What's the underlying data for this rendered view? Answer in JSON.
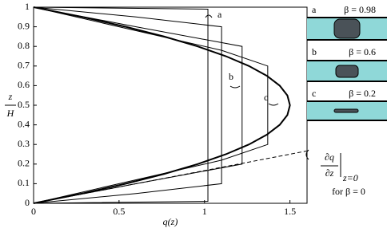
{
  "chart_data": {
    "type": "line",
    "xlabel": "q(z)",
    "ylabel_top": "z",
    "ylabel_bottom": "H",
    "xlim": [
      0,
      1.6
    ],
    "ylim": [
      0,
      1
    ],
    "xticks": [
      0,
      0.5,
      1,
      1.5
    ],
    "yticks": [
      0,
      0.1,
      0.2,
      0.3,
      0.4,
      0.5,
      0.6,
      0.7,
      0.8,
      0.9,
      1
    ],
    "series": [
      {
        "color": "#000000",
        "width": 2,
        "x": [
          0,
          0.285,
          0.54,
          0.765,
          0.96,
          1.125,
          1.26,
          1.365,
          1.44,
          1.485,
          1.5,
          1.485,
          1.44,
          1.365,
          1.26,
          1.125,
          0.96,
          0.765,
          0.54,
          0.285,
          0
        ],
        "y": [
          0,
          0.05,
          0.1,
          0.15,
          0.2,
          0.25,
          0.3,
          0.35,
          0.4,
          0.45,
          0.5,
          0.55,
          0.6,
          0.65,
          0.7,
          0.75,
          0.8,
          0.85,
          0.9,
          0.95,
          1
        ]
      },
      {
        "name": "a",
        "color": "#000000",
        "width": 1,
        "x": [
          0,
          1.02,
          1.02,
          0
        ],
        "y": [
          0,
          0.01,
          0.99,
          1
        ]
      },
      {
        "color": "#000000",
        "width": 1,
        "x": [
          0,
          0.6,
          1.1,
          1.1,
          0.6,
          0
        ],
        "y": [
          0,
          0.05,
          0.1,
          0.9,
          0.95,
          1
        ]
      },
      {
        "name": "b",
        "color": "#000000",
        "width": 1,
        "x": [
          0,
          0.6,
          1.22,
          1.22,
          0.6,
          0
        ],
        "y": [
          0,
          0.1,
          0.2,
          0.8,
          0.9,
          1
        ]
      },
      {
        "name": "c",
        "color": "#000000",
        "width": 1,
        "x": [
          0,
          0.6,
          1.1,
          1.37,
          1.37,
          1.1,
          0.6,
          0
        ],
        "y": [
          0,
          0.12,
          0.22,
          0.3,
          0.7,
          0.78,
          0.88,
          1
        ]
      },
      {
        "color": "#000000",
        "width": 1,
        "dashed": true,
        "x": [
          0,
          1.6
        ],
        "y": [
          0,
          0.267
        ]
      }
    ],
    "annotation": {
      "top": "∂q",
      "bottom": "∂z",
      "sub": "z=0",
      "note": "for β = 0"
    },
    "insets": [
      "β = 0.98",
      "β = 0.6",
      "β = 0.2"
    ]
  }
}
